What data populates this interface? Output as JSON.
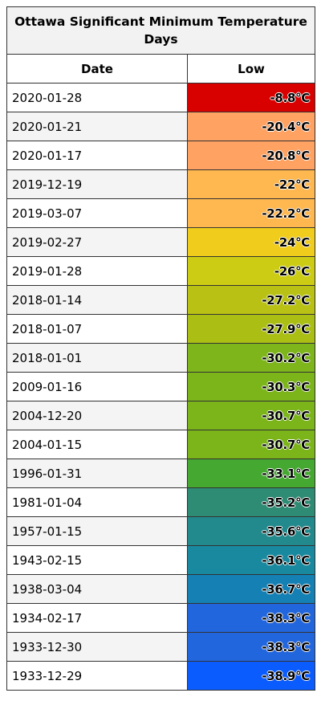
{
  "table": {
    "title": "Ottawa Significant Minimum Temperature Days",
    "headers": [
      "Date",
      "Low"
    ],
    "rows": [
      [
        "2020-01-28",
        "-8.8°C"
      ],
      [
        "2020-01-21",
        "-20.4°C"
      ],
      [
        "2020-01-17",
        "-20.8°C"
      ],
      [
        "2019-12-19",
        "-22°C"
      ],
      [
        "2019-03-07",
        "-22.2°C"
      ],
      [
        "2019-02-27",
        "-24°C"
      ],
      [
        "2019-01-28",
        "-26°C"
      ],
      [
        "2018-01-14",
        "-27.2°C"
      ],
      [
        "2018-01-07",
        "-27.9°C"
      ],
      [
        "2018-01-01",
        "-30.2°C"
      ],
      [
        "2009-01-16",
        "-30.3°C"
      ],
      [
        "2004-12-20",
        "-30.7°C"
      ],
      [
        "2004-01-15",
        "-30.7°C"
      ],
      [
        "1996-01-31",
        "-33.1°C"
      ],
      [
        "1981-01-04",
        "-35.2°C"
      ],
      [
        "1957-01-15",
        "-35.6°C"
      ],
      [
        "1943-02-15",
        "-36.1°C"
      ],
      [
        "1938-03-04",
        "-36.7°C"
      ],
      [
        "1934-02-17",
        "-38.3°C"
      ],
      [
        "1933-12-30",
        "-38.3°C"
      ],
      [
        "1933-12-29",
        "-38.9°C"
      ]
    ],
    "colors": [
      "#d90000",
      "#ffa262",
      "#ffa262",
      "#ffb74f",
      "#ffb74f",
      "#f0cc1c",
      "#cdcc14",
      "#b9c214",
      "#abbe14",
      "#7db51a",
      "#7bb51a",
      "#7bb51a",
      "#7bb51a",
      "#45a830",
      "#2e8b74",
      "#22898c",
      "#18899e",
      "#1480b4",
      "#2266dd",
      "#2266dd",
      "#0a5cff"
    ]
  }
}
